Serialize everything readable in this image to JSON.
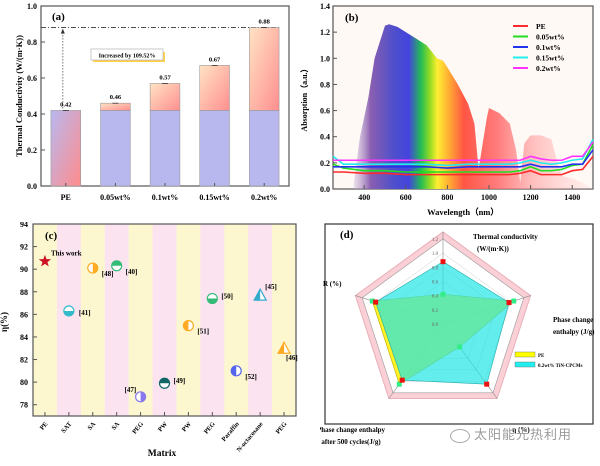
{
  "chart_data": [
    {
      "panel": "(a)",
      "type": "bar",
      "title": "",
      "xlabel": "",
      "ylabel": "Thermal Conductivity (W/(m·K))",
      "categories": [
        "PE",
        "0.05wt%",
        "0.1wt%",
        "0.15wt%",
        "0.2wt%"
      ],
      "values": [
        0.42,
        0.46,
        0.57,
        0.67,
        0.88
      ],
      "value_labels": [
        "0.42",
        "0.46",
        "0.57",
        "0.67",
        "0.88"
      ],
      "base_value": 0.42,
      "ylim": [
        0,
        1.0
      ],
      "yticks": [
        "0.0",
        "0.2",
        "0.4",
        "0.6",
        "0.8",
        "1.0"
      ],
      "annotation": "Increased by 109.52%",
      "colors": {
        "base": "#b8b8ef",
        "increase_top": "#ffe3c4",
        "increase_bottom": "#ff8f8f",
        "frame": "#555555"
      }
    },
    {
      "panel": "(b)",
      "type": "line",
      "xlabel": "Wavelength（nm）",
      "ylabel": "Absorption（a.u.）",
      "xlim": [
        250,
        1500
      ],
      "ylim": [
        0,
        1.4
      ],
      "xticks": [
        "400",
        "600",
        "800",
        "1000",
        "1200",
        "1400"
      ],
      "yticks": [
        "0.0",
        "0.2",
        "0.4",
        "0.6",
        "0.8",
        "1.0",
        "1.2",
        "1.4"
      ],
      "legend_position": "top-right",
      "x": [
        250,
        300,
        400,
        500,
        600,
        700,
        800,
        900,
        1000,
        1100,
        1150,
        1200,
        1250,
        1300,
        1350,
        1400,
        1450,
        1500
      ],
      "series": [
        {
          "name": "PE",
          "color": "#ff2a2a",
          "values": [
            0.13,
            0.13,
            0.12,
            0.12,
            0.11,
            0.11,
            0.11,
            0.11,
            0.11,
            0.11,
            0.12,
            0.14,
            0.11,
            0.11,
            0.11,
            0.14,
            0.15,
            0.25
          ]
        },
        {
          "name": "0.05wt%",
          "color": "#22dd22",
          "values": [
            0.19,
            0.16,
            0.14,
            0.14,
            0.13,
            0.13,
            0.13,
            0.13,
            0.13,
            0.13,
            0.14,
            0.17,
            0.14,
            0.14,
            0.15,
            0.18,
            0.19,
            0.34
          ]
        },
        {
          "name": "0.1wt%",
          "color": "#2233ee",
          "values": [
            0.17,
            0.17,
            0.17,
            0.17,
            0.17,
            0.17,
            0.16,
            0.17,
            0.17,
            0.17,
            0.17,
            0.19,
            0.17,
            0.17,
            0.17,
            0.19,
            0.19,
            0.3
          ]
        },
        {
          "name": "0.15wt%",
          "color": "#22eeee",
          "values": [
            0.25,
            0.19,
            0.19,
            0.19,
            0.19,
            0.19,
            0.18,
            0.19,
            0.19,
            0.19,
            0.2,
            0.22,
            0.2,
            0.19,
            0.2,
            0.22,
            0.23,
            0.38
          ]
        },
        {
          "name": "0.2wt%",
          "color": "#ff33ff",
          "values": [
            0.22,
            0.22,
            0.22,
            0.22,
            0.22,
            0.22,
            0.22,
            0.22,
            0.22,
            0.22,
            0.22,
            0.25,
            0.23,
            0.22,
            0.22,
            0.25,
            0.25,
            0.36
          ]
        }
      ],
      "background_solar_spectrum": {
        "x": [
          350,
          380,
          420,
          450,
          480,
          500,
          520,
          560,
          600,
          650,
          700,
          750,
          780,
          800,
          850,
          900,
          930,
          950,
          990,
          1000,
          1050,
          1100,
          1130,
          1150,
          1170,
          1200,
          1250,
          1300,
          1330,
          1350,
          1400,
          1450,
          1500
        ],
        "values": [
          0.05,
          0.4,
          0.7,
          1.0,
          1.15,
          1.25,
          1.26,
          1.24,
          1.2,
          1.15,
          1.1,
          1.0,
          0.98,
          0.93,
          0.8,
          0.65,
          0.5,
          0.15,
          0.55,
          0.62,
          0.58,
          0.5,
          0.3,
          0.05,
          0.35,
          0.41,
          0.41,
          0.38,
          0.2,
          0.1,
          0.08,
          0.05,
          0.0
        ]
      }
    },
    {
      "panel": "(c)",
      "type": "scatter",
      "xlabel": "Matrix",
      "ylabel": "η(%)",
      "ylim": [
        77,
        94
      ],
      "yticks": [
        "78",
        "80",
        "82",
        "84",
        "86",
        "88",
        "90",
        "92",
        "94"
      ],
      "categories": [
        "PE",
        "SAT",
        "SA",
        "SA",
        "PEG",
        "PW",
        "PW",
        "PEG",
        "Paraffin",
        "N-octacosane",
        "PEG"
      ],
      "points": [
        {
          "category_index": 0,
          "value": 90.7,
          "label": "This work",
          "marker": "star",
          "color": "#cc1122"
        },
        {
          "category_index": 1,
          "value": 86.3,
          "label": "[41]",
          "marker": "half-circle-bottom",
          "color": "#33bbcc"
        },
        {
          "category_index": 2,
          "value": 90.1,
          "label": "[48]",
          "marker": "half-circle-right",
          "color": "#ffaa22"
        },
        {
          "category_index": 3,
          "value": 90.3,
          "label": "[40]",
          "marker": "half-circle-top",
          "color": "#33bb77"
        },
        {
          "category_index": 4,
          "value": 78.7,
          "label": "[47]",
          "marker": "half-circle-right",
          "color": "#8877ee"
        },
        {
          "category_index": 5,
          "value": 79.9,
          "label": "[49]",
          "marker": "half-circle-top",
          "color": "#116666"
        },
        {
          "category_index": 6,
          "value": 85.0,
          "label": "[51]",
          "marker": "half-circle-left",
          "color": "#ffaa22"
        },
        {
          "category_index": 7,
          "value": 87.4,
          "label": "[50]",
          "marker": "half-circle-bottom",
          "color": "#33bb77"
        },
        {
          "category_index": 8,
          "value": 81.0,
          "label": "[52]",
          "marker": "half-circle-left",
          "color": "#5566ee"
        },
        {
          "category_index": 9,
          "value": 87.7,
          "label": "[45]",
          "marker": "half-triangle",
          "color": "#33aacc"
        },
        {
          "category_index": 10,
          "value": 83.0,
          "label": "[46]",
          "marker": "half-triangle",
          "color": "#ffaa22"
        }
      ],
      "band_colors": [
        "#fdf7d0",
        "#fbe3f0"
      ]
    },
    {
      "panel": "(d)",
      "type": "radar",
      "axes": [
        "Thermal conductivity (W/(m·K))",
        "Phase change enthalpy (J/g)",
        "η (%)",
        "Phase change enthalpy after 500 cycles(J/g)",
        "R (%)"
      ],
      "scale_ticks": [
        "0.0",
        "0.2",
        "0.4",
        "0.6",
        "0.8",
        "1.0",
        "1.2"
      ],
      "range": [
        0,
        1.2
      ],
      "legend_position": "bottom-right",
      "series": [
        {
          "name": "PE",
          "color": "#ffff00",
          "values": [
            0.42,
            1.05,
            0.4,
            1.05,
            1.05
          ]
        },
        {
          "name": "0.2wt% TiN-CPCMs",
          "color": "#22eeee",
          "values": [
            0.88,
            0.98,
            1.05,
            0.98,
            1.0
          ]
        }
      ]
    }
  ],
  "labels": {
    "panel_a": "(a)",
    "panel_b": "(b)",
    "panel_c": "(c)",
    "panel_d": "(d)",
    "this_work": "This work",
    "watermark": "太阳能光热利用"
  }
}
